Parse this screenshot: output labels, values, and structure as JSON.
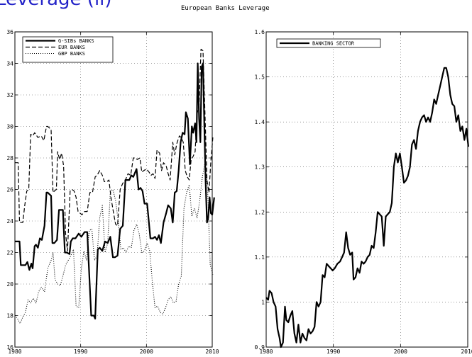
{
  "heading_fragment": "Leverage (ii)",
  "figure_title": "European Banks Leverage",
  "chart_data": [
    {
      "type": "line",
      "title": "",
      "xlabel": "",
      "ylabel": "",
      "xlim": [
        1980,
        2010
      ],
      "ylim": [
        16,
        36
      ],
      "xticks": [
        1980,
        1990,
        2000,
        2010
      ],
      "yticks": [
        16,
        18,
        20,
        22,
        24,
        26,
        28,
        30,
        32,
        34,
        36
      ],
      "grid": true,
      "legend_position": "top-left",
      "series": [
        {
          "name": "G-SIBs BANKS",
          "style": "solid",
          "x": [
            1980.0,
            1980.7,
            1980.9,
            1981.6,
            1981.9,
            1982.2,
            1982.5,
            1982.7,
            1983.0,
            1983.2,
            1983.5,
            1983.8,
            1984.1,
            1984.5,
            1984.8,
            1985.0,
            1985.5,
            1985.7,
            1986.0,
            1986.4,
            1986.7,
            1987.3,
            1987.6,
            1987.9,
            1988.3,
            1988.5,
            1988.8,
            1989.2,
            1989.7,
            1990.1,
            1990.6,
            1991.0,
            1991.6,
            1992.0,
            1992.2,
            1992.6,
            1992.9,
            1993.3,
            1993.7,
            1994.1,
            1994.5,
            1994.9,
            1995.2,
            1995.6,
            1996.0,
            1996.4,
            1996.8,
            1997.4,
            1997.7,
            1998.0,
            1998.5,
            1998.8,
            1999.1,
            1999.4,
            1999.7,
            2000.1,
            2000.6,
            2001.0,
            2001.3,
            2001.6,
            2001.9,
            2002.2,
            2002.6,
            2003.0,
            2003.3,
            2003.7,
            2004.0,
            2004.3,
            2004.6,
            2004.9,
            2005.2,
            2005.5,
            2005.8,
            2006.0,
            2006.3,
            2006.6,
            2006.9,
            2007.1,
            2007.4,
            2007.6,
            2007.8,
            2008.0,
            2008.2,
            2008.4,
            2008.6,
            2008.8,
            2009.0,
            2009.2,
            2009.4,
            2009.6,
            2009.8,
            2010.0,
            2010.3
          ],
          "y": [
            22.7,
            22.7,
            21.2,
            21.2,
            21.4,
            20.9,
            21.3,
            21.0,
            22.4,
            22.5,
            22.3,
            22.9,
            22.8,
            23.7,
            25.8,
            25.8,
            25.6,
            22.6,
            22.6,
            22.8,
            24.7,
            24.7,
            22.0,
            22.0,
            21.9,
            22.7,
            22.9,
            22.9,
            23.2,
            23.0,
            23.3,
            23.3,
            18.0,
            18.0,
            17.8,
            22.2,
            22.3,
            22.1,
            22.7,
            22.6,
            23.0,
            21.7,
            21.7,
            21.8,
            23.5,
            23.7,
            26.6,
            26.6,
            26.9,
            26.8,
            27.3,
            26.0,
            26.1,
            25.9,
            25.1,
            25.1,
            22.9,
            22.9,
            23.0,
            22.8,
            23.1,
            22.6,
            23.9,
            24.5,
            25.0,
            24.8,
            23.9,
            25.8,
            25.9,
            27.2,
            29.0,
            29.6,
            29.5,
            30.9,
            30.5,
            27.6,
            30.0,
            29.6,
            30.2,
            29.0,
            34.0,
            30.5,
            29.0,
            33.8,
            34.0,
            30.0,
            26.5,
            23.9,
            24.2,
            25.5,
            24.5,
            24.4,
            25.5
          ]
        },
        {
          "name": "EUR BANKS",
          "style": "dashed",
          "x": [
            1980.0,
            1980.5,
            1980.7,
            1981.2,
            1981.5,
            1981.8,
            1982.1,
            1982.4,
            1982.7,
            1983.0,
            1983.5,
            1984.0,
            1984.4,
            1984.8,
            1985.0,
            1985.5,
            1985.8,
            1986.0,
            1986.3,
            1986.5,
            1986.8,
            1987.1,
            1987.4,
            1987.7,
            1988.0,
            1988.4,
            1988.7,
            1989.0,
            1989.3,
            1989.6,
            1989.9,
            1990.2,
            1990.6,
            1991.0,
            1991.4,
            1991.8,
            1992.2,
            1992.5,
            1992.9,
            1993.3,
            1993.6,
            1994.0,
            1994.3,
            1994.6,
            1995.0,
            1995.3,
            1995.6,
            1996.0,
            1996.4,
            1996.8,
            1997.2,
            1997.6,
            1998.0,
            1998.3,
            1998.6,
            1999.0,
            1999.3,
            1999.6,
            2000.0,
            2000.4,
            2000.7,
            2001.0,
            2001.3,
            2001.6,
            2002.0,
            2002.3,
            2002.6,
            2003.0,
            2003.3,
            2003.6,
            2004.0,
            2004.3,
            2004.6,
            2005.0,
            2005.3,
            2005.6,
            2005.9,
            2006.2,
            2006.5,
            2006.8,
            2007.1,
            2007.4,
            2007.7,
            2008.0,
            2008.3,
            2008.6,
            2008.9,
            2009.2,
            2009.5,
            2009.8,
            2010.1
          ],
          "y": [
            27.7,
            27.7,
            23.9,
            23.9,
            25.0,
            25.9,
            26.0,
            29.5,
            29.4,
            29.6,
            29.3,
            29.4,
            29.1,
            30.0,
            30.0,
            29.8,
            25.8,
            25.9,
            26.0,
            28.4,
            27.9,
            28.3,
            27.5,
            23.2,
            22.1,
            25.9,
            26.0,
            25.9,
            25.5,
            24.6,
            24.5,
            24.4,
            24.6,
            24.6,
            25.8,
            25.8,
            26.8,
            26.9,
            27.2,
            26.9,
            26.5,
            26.5,
            26.6,
            25.5,
            24.5,
            23.8,
            23.7,
            26.0,
            26.4,
            26.6,
            27.0,
            26.9,
            28.0,
            28.0,
            27.9,
            28.0,
            27.1,
            27.2,
            27.3,
            27.1,
            26.9,
            27.0,
            26.7,
            28.5,
            28.3,
            27.2,
            27.7,
            27.5,
            27.0,
            26.6,
            29.0,
            28.2,
            28.9,
            29.4,
            29.3,
            29.0,
            27.2,
            26.8,
            26.6,
            27.9,
            28.1,
            28.4,
            30.8,
            31.4,
            34.9,
            34.8,
            30.8,
            26.6,
            25.8,
            27.8,
            29.3
          ]
        },
        {
          "name": "GBP BANKS",
          "style": "dotted",
          "x": [
            1980.0,
            1980.4,
            1980.8,
            1981.2,
            1981.6,
            1982.0,
            1982.4,
            1982.8,
            1983.2,
            1983.6,
            1984.0,
            1984.5,
            1985.0,
            1985.5,
            1985.8,
            1986.1,
            1986.5,
            1986.9,
            1987.3,
            1987.7,
            1988.1,
            1988.5,
            1988.9,
            1989.3,
            1989.7,
            1990.1,
            1990.5,
            1990.9,
            1991.3,
            1991.7,
            1992.1,
            1992.5,
            1992.9,
            1993.3,
            1993.7,
            1994.1,
            1994.5,
            1994.9,
            1995.3,
            1995.7,
            1996.1,
            1996.5,
            1996.9,
            1997.3,
            1997.7,
            1998.1,
            1998.5,
            1998.9,
            1999.3,
            1999.7,
            2000.1,
            2000.5,
            2000.9,
            2001.3,
            2001.7,
            2002.1,
            2002.5,
            2002.9,
            2003.3,
            2003.7,
            2004.1,
            2004.5,
            2004.9,
            2005.3,
            2005.7,
            2006.1,
            2006.5,
            2006.9,
            2007.3,
            2007.7,
            2008.1,
            2008.5,
            2008.9,
            2009.3,
            2009.7,
            2010.1
          ],
          "y": [
            18.0,
            17.8,
            17.5,
            17.9,
            18.2,
            19.0,
            18.8,
            19.1,
            18.8,
            19.5,
            19.8,
            19.5,
            21.0,
            21.5,
            22.0,
            20.3,
            20.0,
            19.9,
            20.5,
            21.2,
            21.5,
            21.8,
            22.2,
            18.6,
            18.5,
            21.0,
            22.1,
            21.5,
            23.4,
            23.5,
            21.5,
            21.8,
            24.2,
            25.0,
            22.0,
            22.6,
            25.8,
            26.0,
            25.3,
            24.0,
            22.2,
            22.3,
            22.0,
            22.4,
            22.3,
            23.4,
            23.8,
            23.2,
            22.0,
            22.1,
            22.6,
            22.1,
            20.1,
            18.5,
            18.6,
            18.2,
            18.1,
            18.5,
            19.0,
            19.2,
            18.8,
            18.9,
            20.0,
            20.5,
            24.8,
            25.8,
            26.3,
            24.3,
            24.8,
            24.2,
            25.3,
            26.8,
            27.7,
            26.0,
            21.2,
            20.6
          ]
        }
      ]
    },
    {
      "type": "line",
      "title": "",
      "xlabel": "",
      "ylabel": "",
      "xlim": [
        1980,
        2010
      ],
      "ylim": [
        0.9,
        1.6
      ],
      "xticks": [
        1980,
        1990,
        2000,
        2010
      ],
      "yticks": [
        0.9,
        1,
        1.1,
        1.2,
        1.3,
        1.4,
        1.5,
        1.6
      ],
      "grid": true,
      "legend_position": "top-left",
      "series": [
        {
          "name": "BANKING SECTOR",
          "style": "solid",
          "x": [
            1980.0,
            1980.3,
            1980.5,
            1980.8,
            1981.1,
            1981.4,
            1981.7,
            1982.0,
            1982.2,
            1982.5,
            1982.8,
            1983.0,
            1983.3,
            1983.6,
            1983.9,
            1984.2,
            1984.5,
            1984.8,
            1985.1,
            1985.4,
            1985.7,
            1986.0,
            1986.3,
            1986.6,
            1986.9,
            1987.2,
            1987.5,
            1987.8,
            1988.1,
            1988.4,
            1988.7,
            1989.0,
            1989.3,
            1989.6,
            1989.9,
            1990.2,
            1990.6,
            1991.0,
            1991.3,
            1991.6,
            1991.9,
            1992.2,
            1992.5,
            1992.8,
            1993.0,
            1993.3,
            1993.6,
            1993.9,
            1994.2,
            1994.5,
            1994.8,
            1995.1,
            1995.4,
            1995.7,
            1996.0,
            1996.3,
            1996.6,
            1996.9,
            1997.2,
            1997.5,
            1997.8,
            1998.1,
            1998.4,
            1998.7,
            1999.0,
            1999.3,
            1999.6,
            1999.9,
            2000.2,
            2000.5,
            2000.8,
            2001.1,
            2001.4,
            2001.7,
            2002.0,
            2002.3,
            2002.6,
            2002.9,
            2003.2,
            2003.5,
            2003.8,
            2004.1,
            2004.4,
            2004.7,
            2005.0,
            2005.3,
            2005.6,
            2005.9,
            2006.2,
            2006.5,
            2006.8,
            2007.1,
            2007.4,
            2007.7,
            2008.0,
            2008.3,
            2008.6,
            2008.9,
            2009.2,
            2009.5,
            2009.8,
            2010.1
          ],
          "y": [
            1.01,
            1.005,
            1.025,
            1.02,
            1.0,
            0.99,
            0.94,
            0.92,
            0.9,
            0.91,
            0.99,
            0.96,
            0.955,
            0.97,
            0.98,
            0.93,
            0.91,
            0.95,
            0.91,
            0.93,
            0.92,
            0.915,
            0.94,
            0.93,
            0.935,
            0.945,
            1.0,
            0.99,
            1.0,
            1.06,
            1.055,
            1.085,
            1.08,
            1.075,
            1.07,
            1.075,
            1.085,
            1.09,
            1.1,
            1.11,
            1.155,
            1.12,
            1.105,
            1.11,
            1.05,
            1.055,
            1.075,
            1.065,
            1.09,
            1.085,
            1.09,
            1.1,
            1.105,
            1.125,
            1.12,
            1.155,
            1.2,
            1.195,
            1.19,
            1.125,
            1.19,
            1.195,
            1.2,
            1.22,
            1.3,
            1.33,
            1.31,
            1.33,
            1.3,
            1.265,
            1.27,
            1.28,
            1.3,
            1.35,
            1.36,
            1.34,
            1.38,
            1.4,
            1.41,
            1.415,
            1.4,
            1.41,
            1.4,
            1.42,
            1.45,
            1.44,
            1.46,
            1.48,
            1.5,
            1.52,
            1.52,
            1.5,
            1.46,
            1.44,
            1.435,
            1.4,
            1.415,
            1.38,
            1.39,
            1.36,
            1.385,
            1.345
          ]
        }
      ]
    }
  ]
}
